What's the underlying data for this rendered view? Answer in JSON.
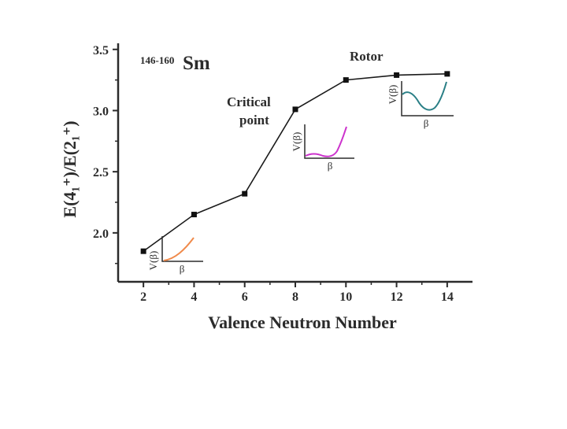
{
  "chart_data": {
    "type": "line",
    "element": "146-160 Sm",
    "element_mass_range": "146-160",
    "element_symbol": "Sm",
    "xlabel": "Valence Neutron Number",
    "ylabel": "E(4₁⁺)/E(2₁⁺)",
    "xlim": [
      1,
      15
    ],
    "ylim": [
      1.6,
      3.55
    ],
    "xticks": [
      2,
      4,
      6,
      8,
      10,
      12,
      14
    ],
    "yticks": [
      2.0,
      2.5,
      3.0,
      3.5
    ],
    "ytick_labels": [
      "2.0",
      "2.5",
      "3.0",
      "3.5"
    ],
    "x": [
      2,
      4,
      6,
      8,
      10,
      12,
      14
    ],
    "y": [
      1.85,
      2.15,
      2.32,
      3.01,
      3.25,
      3.29,
      3.3
    ],
    "annotations": [
      {
        "text_lines": [
          "Critical",
          "point"
        ],
        "near_x": 8
      },
      {
        "text_lines": [
          "Rotor"
        ],
        "near_x": 12
      }
    ],
    "insets": [
      {
        "axis_y_label": "V(β)",
        "axis_x_label": "β",
        "curve": "rising",
        "color": "#f08a4b"
      },
      {
        "axis_y_label": "V(β)",
        "axis_x_label": "β",
        "curve": "flat",
        "color": "#cc33cc"
      },
      {
        "axis_y_label": "V(β)",
        "axis_x_label": "β",
        "curve": "well",
        "color": "#2a7f86"
      }
    ],
    "colors": {
      "axis": "#2b2b2b",
      "line": "#1a1a1a"
    }
  }
}
